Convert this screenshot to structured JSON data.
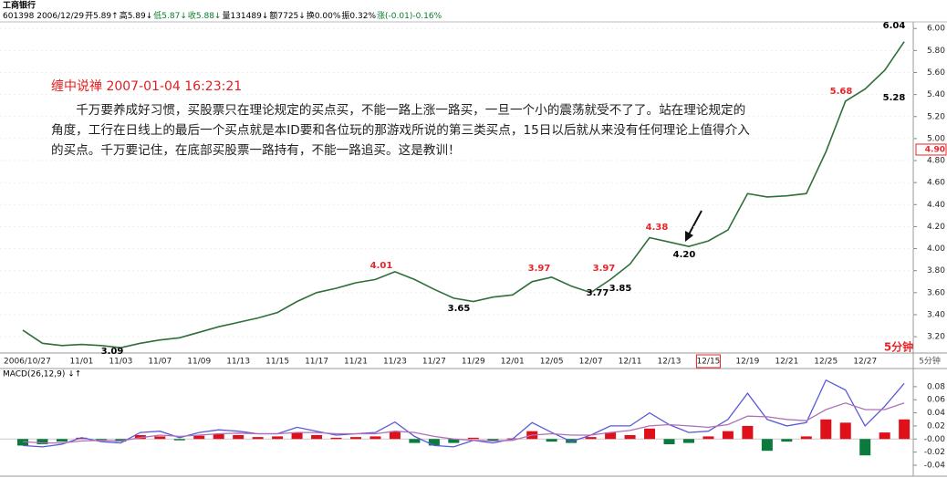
{
  "chart_data": [
    {
      "type": "line",
      "title": "工商银行",
      "quote": [
        {
          "text": "601398 2006/12/29",
          "color": "#000000"
        },
        {
          "text": "开5.89↑",
          "color": "#000000"
        },
        {
          "text": "高5.89↓",
          "color": "#000000"
        },
        {
          "text": "低5.87↓",
          "color": "#0a7a2a"
        },
        {
          "text": "收5.88↓",
          "color": "#0a7a2a"
        },
        {
          "text": "量131489↓",
          "color": "#000000"
        },
        {
          "text": "额7725↓",
          "color": "#000000"
        },
        {
          "text": "换0.00%",
          "color": "#000000"
        },
        {
          "text": "振0.32%",
          "color": "#000000"
        },
        {
          "text": "涨(-0.01)-0.16%",
          "color": "#0a7a2a"
        }
      ],
      "annotation": {
        "title": "缠中说禅 2007-01-04 16:23:21",
        "text": "千万要养成好习惯，买股票只在理论规定的买点买，不能一路上涨一路买，一旦一个小的震荡就受不了了。站在理论规定的角度，工行在日线上的最后一个买点就是本ID要和各位玩的那游戏所说的第三类买点，15日以后就从来没有任何理论上值得介入的买点。千万要记住，在底部买股票一路持有，不能一路追买。这是教训！"
      },
      "period": "5分钟",
      "categories": [
        "2006/10/27",
        null,
        null,
        "11/01",
        null,
        "11/03",
        null,
        "11/07",
        null,
        "11/09",
        null,
        "11/13",
        null,
        "11/15",
        null,
        "11/17",
        null,
        "11/21",
        null,
        "11/23",
        null,
        "11/27",
        null,
        "11/29",
        null,
        "12/01",
        null,
        "12/05",
        null,
        "12/07",
        null,
        "12/11",
        null,
        "12/13",
        null,
        "12/15",
        null,
        "12/19",
        null,
        "12/21",
        null,
        "12/25",
        null,
        "12/27",
        null,
        null
      ],
      "highlight": "12/15",
      "values": [
        3.26,
        3.14,
        3.12,
        3.13,
        3.12,
        3.1,
        3.14,
        3.17,
        3.19,
        3.24,
        3.29,
        3.33,
        3.37,
        3.42,
        3.52,
        3.6,
        3.64,
        3.69,
        3.72,
        3.79,
        3.72,
        3.63,
        3.55,
        3.52,
        3.56,
        3.58,
        3.7,
        3.74,
        3.66,
        3.6,
        3.72,
        3.86,
        4.1,
        4.06,
        4.02,
        4.07,
        4.17,
        4.5,
        4.47,
        4.48,
        4.5,
        4.88,
        5.34,
        5.45,
        5.62,
        5.88
      ],
      "color": "#2f6f3a",
      "extremes": [
        {
          "value": 3.09,
          "color": "#000000"
        },
        {
          "value": 4.01,
          "color": "#e8252a"
        },
        {
          "value": 3.65,
          "color": "#000000"
        },
        {
          "value": 3.97,
          "color": "#e8252a"
        },
        {
          "value": 3.77,
          "color": "#000000"
        },
        {
          "value": 3.97,
          "color": "#e8252a"
        },
        {
          "value": 3.85,
          "color": "#000000"
        },
        {
          "value": 4.38,
          "color": "#e8252a"
        },
        {
          "value": 4.2,
          "label": "4.20",
          "color": "#000000"
        },
        {
          "value": 5.68,
          "color": "#e8252a"
        },
        {
          "value": 5.28,
          "color": "#000000"
        },
        {
          "value": 6.04,
          "color": "#000000"
        }
      ],
      "reference": {
        "value": 4.9,
        "label": "4.90",
        "color": "#e8252a"
      },
      "ylim": [
        3.06,
        6.06
      ],
      "yticks": [
        {
          "value": 3.2,
          "label": "3.20"
        },
        {
          "value": 3.4,
          "label": "3.40"
        },
        {
          "value": 3.6,
          "label": "3.60"
        },
        {
          "value": 3.8,
          "label": "3.80"
        },
        {
          "value": 4.0,
          "label": "4.00"
        },
        {
          "value": 4.2,
          "label": "4.20"
        },
        {
          "value": 4.4,
          "label": "4.40"
        },
        {
          "value": 4.6,
          "label": "4.60"
        },
        {
          "value": 4.8,
          "label": "4.80"
        },
        {
          "value": 5.0,
          "label": "5.00"
        },
        {
          "value": 5.2,
          "label": "5.20"
        },
        {
          "value": 5.4,
          "label": "5.40"
        },
        {
          "value": 5.6,
          "label": "5.60"
        },
        {
          "value": 5.8,
          "label": "5.80"
        },
        {
          "value": 6.0,
          "label": "6.00"
        }
      ]
    },
    {
      "type": "macd",
      "title": "MACD(26,12,9) ↓↑",
      "histogram": {
        "up_color": "#e0101a",
        "down_color": "#0a7a3d",
        "values": [
          -0.01,
          -0.008,
          -0.004,
          0.002,
          -0.003,
          -0.004,
          0.006,
          0.004,
          -0.002,
          0.005,
          0.008,
          0.006,
          0.003,
          0.004,
          0.01,
          0.006,
          0.002,
          0.003,
          0.004,
          0.012,
          -0.006,
          -0.01,
          -0.006,
          0.002,
          -0.003,
          0.001,
          0.012,
          -0.004,
          -0.006,
          0.003,
          0.01,
          0.006,
          0.016,
          -0.008,
          -0.006,
          0.004,
          0.012,
          0.02,
          -0.018,
          -0.004,
          0.004,
          0.03,
          0.025,
          -0.025,
          0.01,
          0.03
        ]
      },
      "lines": [
        {
          "color": "#5a5ad8",
          "values": [
            -0.01,
            -0.012,
            -0.008,
            0.002,
            -0.004,
            -0.006,
            0.01,
            0.012,
            0.002,
            0.01,
            0.014,
            0.012,
            0.008,
            0.008,
            0.018,
            0.012,
            0.006,
            0.008,
            0.01,
            0.026,
            0.004,
            -0.01,
            -0.012,
            -0.002,
            -0.006,
            0.0,
            0.025,
            0.01,
            -0.004,
            0.006,
            0.02,
            0.02,
            0.04,
            0.022,
            0.01,
            0.012,
            0.03,
            0.07,
            0.03,
            0.02,
            0.025,
            0.09,
            0.075,
            0.02,
            0.05,
            0.085
          ]
        },
        {
          "color": "#b070b8",
          "values": [
            -0.004,
            -0.006,
            -0.006,
            -0.003,
            -0.002,
            -0.003,
            0.002,
            0.006,
            0.004,
            0.006,
            0.008,
            0.009,
            0.008,
            0.008,
            0.01,
            0.01,
            0.008,
            0.008,
            0.008,
            0.012,
            0.01,
            0.004,
            0.0,
            -0.002,
            -0.003,
            -0.002,
            0.006,
            0.008,
            0.006,
            0.006,
            0.01,
            0.013,
            0.02,
            0.022,
            0.02,
            0.018,
            0.022,
            0.035,
            0.034,
            0.03,
            0.028,
            0.045,
            0.055,
            0.045,
            0.045,
            0.055
          ]
        }
      ],
      "ylim": [
        -0.054,
        0.091
      ],
      "yticks": [
        {
          "value": -0.04,
          "label": "-0.04"
        },
        {
          "value": -0.02,
          "label": "-0.02"
        },
        {
          "value": 0,
          "label": "-0.00"
        },
        {
          "value": 0.02,
          "label": "0.02"
        },
        {
          "value": 0.04,
          "label": "0.04"
        },
        {
          "value": 0.06,
          "label": "0.06"
        },
        {
          "value": 0.08,
          "label": "0.08"
        }
      ]
    }
  ]
}
